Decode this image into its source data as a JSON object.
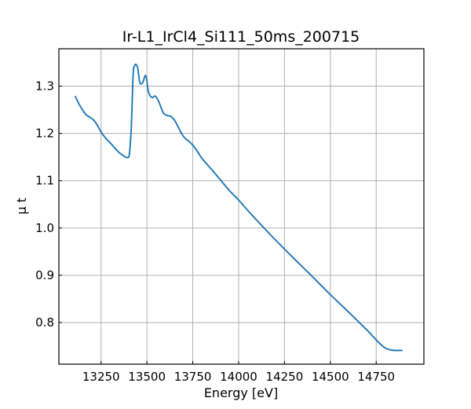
{
  "chart_data": {
    "type": "line",
    "title": "Ir-L1_IrCl4_Si111_50ms_200715",
    "xlabel": "Energy [eV]",
    "ylabel": "μ t",
    "xlim": [
      13020,
      15010
    ],
    "ylim": [
      0.712,
      1.379
    ],
    "xticks": [
      13250,
      13500,
      13750,
      14000,
      14250,
      14500,
      14750
    ],
    "yticks": [
      0.8,
      0.9,
      1.0,
      1.1,
      1.2,
      1.3
    ],
    "grid": true,
    "legend": "none",
    "colors": {
      "series": "#1f77b4",
      "grid": "#b0b0b0",
      "axes": "#000000"
    },
    "series": [
      {
        "x": [
          13110,
          13130,
          13150,
          13170,
          13190,
          13210,
          13230,
          13250,
          13275,
          13300,
          13325,
          13350,
          13375,
          13395,
          13405,
          13415,
          13425,
          13432,
          13440,
          13450,
          13460,
          13470,
          13480,
          13490,
          13498,
          13505,
          13515,
          13530,
          13545,
          13560,
          13575,
          13590,
          13610,
          13630,
          13650,
          13670,
          13690,
          13710,
          13730,
          13750,
          13775,
          13800,
          13825,
          13850,
          13900,
          13950,
          14000,
          14050,
          14100,
          14200,
          14300,
          14400,
          14500,
          14600,
          14700,
          14800,
          14890
        ],
        "y": [
          1.278,
          1.262,
          1.249,
          1.239,
          1.234,
          1.228,
          1.217,
          1.203,
          1.19,
          1.18,
          1.169,
          1.159,
          1.152,
          1.149,
          1.158,
          1.215,
          1.325,
          1.342,
          1.346,
          1.338,
          1.309,
          1.305,
          1.31,
          1.322,
          1.317,
          1.294,
          1.281,
          1.276,
          1.279,
          1.271,
          1.257,
          1.243,
          1.238,
          1.236,
          1.228,
          1.214,
          1.199,
          1.189,
          1.183,
          1.175,
          1.162,
          1.147,
          1.136,
          1.125,
          1.102,
          1.079,
          1.059,
          1.037,
          1.016,
          0.975,
          0.936,
          0.898,
          0.859,
          0.822,
          0.784,
          0.746,
          0.741
        ]
      }
    ]
  }
}
